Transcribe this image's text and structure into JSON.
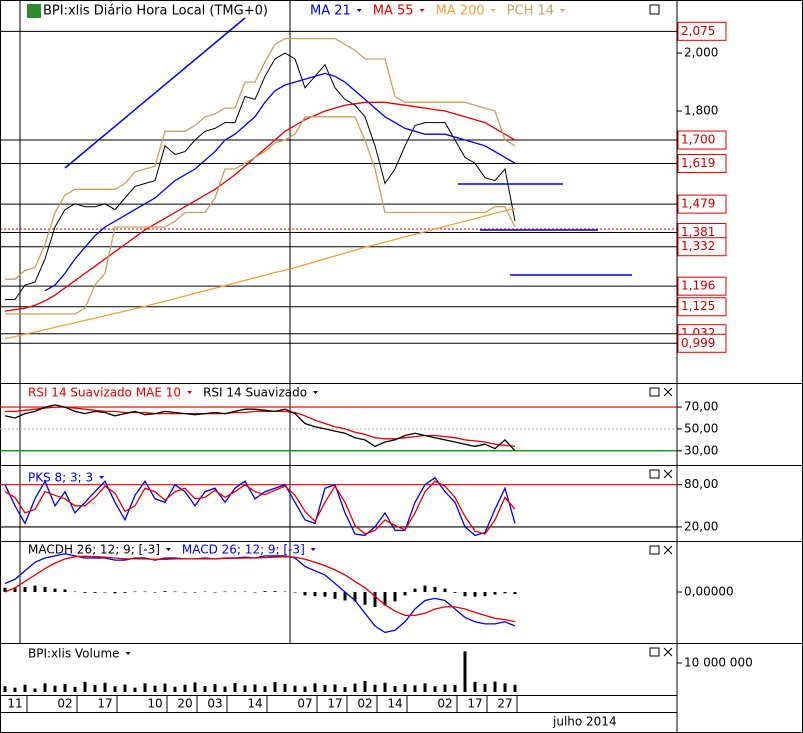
{
  "chart_data": [
    {
      "type": "line",
      "title": "BPI:xlis Diário Hora Local (TMG+0)",
      "period_label": "julho 2014",
      "categories": [
        null,
        "11",
        null,
        null,
        null,
        null,
        "02",
        null,
        null,
        null,
        "17",
        null,
        null,
        null,
        null,
        "10",
        null,
        null,
        "20",
        null,
        null,
        "03",
        null,
        null,
        null,
        "14",
        null,
        null,
        null,
        null,
        "07",
        null,
        null,
        "17",
        null,
        null,
        "02",
        null,
        null,
        "14",
        null,
        null,
        null,
        null,
        "02",
        null,
        null,
        "17",
        null,
        null,
        "27",
        null
      ],
      "ylim": [
        862,
        2183
      ],
      "yticks": [
        {
          "value": 2000,
          "label": "2,000"
        },
        {
          "value": 1800,
          "label": "1,800"
        }
      ],
      "levels": [
        {
          "value": 2075,
          "label": "2,075"
        },
        {
          "value": 1700,
          "label": "1,700"
        },
        {
          "value": 1619,
          "label": "1,619"
        },
        {
          "value": 1479,
          "label": "1,479"
        },
        {
          "value": 1381,
          "label": "1,381"
        },
        {
          "value": 1332,
          "label": "1,332"
        },
        {
          "value": 1196,
          "label": "1,196"
        },
        {
          "value": 1125,
          "label": "1,125"
        },
        {
          "value": 1032,
          "label": "1,032"
        },
        {
          "value": 999,
          "label": "0,999"
        }
      ],
      "series": [
        {
          "color": "#000000",
          "values": [
            1150,
            1150,
            1200,
            1210,
            1290,
            1400,
            1460,
            1480,
            1470,
            1470,
            1480,
            1460,
            1500,
            1540,
            1550,
            1560,
            1680,
            1650,
            1660,
            1700,
            1730,
            1740,
            1760,
            1760,
            1850,
            1840,
            1920,
            1980,
            2000,
            1980,
            1880,
            1920,
            1960,
            1880,
            1840,
            1820,
            1780,
            1680,
            1550,
            1600,
            1680,
            1750,
            1760,
            1760,
            1760,
            1700,
            1640,
            1620,
            1570,
            1560,
            1600,
            1420
          ]
        },
        {
          "name": "MA 21",
          "color": "#0000e0",
          "values": [
            null,
            null,
            null,
            null,
            1180,
            1200,
            1240,
            1290,
            1330,
            1370,
            1400,
            1420,
            1440,
            1460,
            1480,
            1500,
            1530,
            1560,
            1580,
            1600,
            1630,
            1660,
            1700,
            1720,
            1750,
            1780,
            1830,
            1870,
            1890,
            1900,
            1910,
            1920,
            1930,
            1920,
            1900,
            1870,
            1840,
            1810,
            1780,
            1760,
            1740,
            1730,
            1720,
            1720,
            1720,
            1710,
            1700,
            1690,
            1680,
            1660,
            1640,
            1620
          ]
        },
        {
          "name": "MA 55",
          "color": "#e00000",
          "values": [
            1110,
            1115,
            1120,
            1130,
            1145,
            1165,
            1190,
            1215,
            1240,
            1265,
            1290,
            1315,
            1340,
            1365,
            1390,
            1410,
            1430,
            1450,
            1470,
            1490,
            1510,
            1530,
            1555,
            1580,
            1610,
            1640,
            1670,
            1700,
            1730,
            1750,
            1770,
            1785,
            1800,
            1810,
            1820,
            1825,
            1830,
            1830,
            1830,
            1825,
            1820,
            1815,
            1810,
            1805,
            1800,
            1790,
            1780,
            1770,
            1760,
            1740,
            1720,
            1700
          ]
        },
        {
          "name": "MA 200",
          "color": "#f0a040",
          "values": [
            1015,
            1022,
            1030,
            1038,
            1046,
            1054,
            1062,
            1070,
            1078,
            1086,
            1094,
            1102,
            1110,
            1118,
            1126,
            1135,
            1144,
            1153,
            1162,
            1171,
            1180,
            1189,
            1198,
            1207,
            1216,
            1225,
            1234,
            1243,
            1251,
            1260,
            1270,
            1280,
            1290,
            1300,
            1310,
            1320,
            1330,
            1339,
            1348,
            1357,
            1366,
            1375,
            1384,
            1393,
            1402,
            1411,
            1420,
            1429,
            1438,
            1447,
            1456,
            1465
          ]
        },
        {
          "name": "PCH 14",
          "color": "#c8a060",
          "values": [
            1220,
            1220,
            1250,
            1260,
            1340,
            1450,
            1510,
            1530,
            1530,
            1530,
            1530,
            1530,
            1550,
            1590,
            1600,
            1610,
            1730,
            1730,
            1730,
            1750,
            1780,
            1790,
            1810,
            1810,
            1900,
            1900,
            1970,
            2030,
            2050,
            2050,
            2050,
            2050,
            2050,
            2050,
            2030,
            2010,
            1980,
            1980,
            1980,
            1850,
            1830,
            1830,
            1830,
            1830,
            1830,
            1830,
            1830,
            1820,
            1810,
            1800,
            1700,
            1680
          ],
          "lower": [
            1100,
            1100,
            1100,
            1100,
            1100,
            1100,
            1100,
            1100,
            1120,
            1200,
            1240,
            1400,
            1400,
            1400,
            1400,
            1400,
            1400,
            1420,
            1450,
            1450,
            1450,
            1500,
            1600,
            1600,
            1620,
            1640,
            1660,
            1690,
            1700,
            1720,
            1780,
            1780,
            1780,
            1780,
            1780,
            1780,
            1700,
            1600,
            1450,
            1450,
            1450,
            1450,
            1450,
            1450,
            1450,
            1450,
            1450,
            1450,
            1450,
            1470,
            1470,
            1400
          ]
        }
      ]
    },
    {
      "type": "line",
      "ylim": [
        17,
        92
      ],
      "yticks": [
        {
          "value": 70,
          "label": "70,00"
        },
        {
          "value": 50,
          "label": "50,00"
        },
        {
          "value": 30,
          "label": "30,00"
        }
      ],
      "ytick_colors": [
        "#e00000",
        "#bbbbbb",
        "#008000"
      ],
      "series": [
        {
          "name": "RSI 14 Suavizado MAE 10",
          "color": "#e00000",
          "values": [
            66,
            66,
            67,
            68,
            69,
            70,
            70,
            69,
            68,
            67,
            66,
            66,
            65,
            65,
            65,
            64,
            64,
            64,
            64,
            64,
            64,
            64,
            64,
            65,
            65,
            66,
            66,
            66,
            66,
            65,
            62,
            58,
            55,
            52,
            50,
            47,
            45,
            42,
            41,
            41,
            42,
            43,
            44,
            44,
            43,
            42,
            40,
            39,
            38,
            36,
            35,
            34
          ]
        },
        {
          "name": "RSI 14 Suavizado",
          "color": "#000000",
          "values": [
            62,
            60,
            64,
            66,
            70,
            72,
            70,
            66,
            64,
            66,
            65,
            62,
            64,
            66,
            63,
            64,
            66,
            65,
            64,
            63,
            64,
            65,
            64,
            66,
            68,
            68,
            67,
            66,
            68,
            64,
            55,
            52,
            50,
            48,
            46,
            42,
            40,
            34,
            38,
            40,
            44,
            46,
            44,
            42,
            40,
            38,
            36,
            34,
            36,
            32,
            40,
            30
          ]
        }
      ]
    },
    {
      "type": "line",
      "ylim": [
        0,
        108
      ],
      "yticks": [
        {
          "value": 80,
          "label": "80,00"
        },
        {
          "value": 20,
          "label": "20,00"
        }
      ],
      "ytick_colors": [
        "#e00000",
        "#000000"
      ],
      "series": [
        {
          "name": "PKS 8; 3; 3",
          "color": "#0000e0",
          "values": [
            80,
            50,
            25,
            60,
            85,
            50,
            70,
            40,
            55,
            70,
            85,
            55,
            30,
            65,
            85,
            60,
            55,
            80,
            70,
            50,
            70,
            75,
            55,
            75,
            85,
            60,
            70,
            75,
            80,
            55,
            30,
            25,
            75,
            80,
            40,
            10,
            8,
            20,
            40,
            15,
            15,
            55,
            80,
            90,
            70,
            55,
            20,
            8,
            12,
            45,
            75,
            25
          ]
        },
        {
          "color": "#e00000",
          "values": [
            70,
            62,
            40,
            45,
            70,
            65,
            60,
            50,
            50,
            62,
            78,
            68,
            42,
            50,
            75,
            70,
            58,
            70,
            75,
            60,
            62,
            72,
            62,
            70,
            80,
            70,
            66,
            72,
            78,
            65,
            42,
            28,
            55,
            78,
            55,
            22,
            10,
            15,
            30,
            22,
            16,
            40,
            70,
            85,
            78,
            62,
            35,
            14,
            10,
            30,
            62,
            45
          ]
        }
      ]
    },
    {
      "type": "line",
      "ylim": [
        -0.12,
        0.12
      ],
      "yticks": [
        {
          "value": 0,
          "label": "0,00000"
        }
      ],
      "series": [
        {
          "name": "MACDH 26; 12; 9; [-3]",
          "color": "#000000",
          "style": "histogram",
          "values": [
            0.01,
            0.01,
            0.012,
            0.015,
            0.012,
            0.008,
            0.006,
            0.001,
            -0.002,
            -0.002,
            -0.001,
            -0.003,
            -0.002,
            0.001,
            0.001,
            -0.001,
            0.002,
            0.001,
            0,
            0,
            0.001,
            0,
            0.001,
            0.001,
            0.001,
            0,
            0.002,
            0.002,
            0.001,
            -0.001,
            -0.008,
            -0.01,
            -0.011,
            -0.016,
            -0.02,
            -0.022,
            -0.03,
            -0.035,
            -0.032,
            -0.022,
            -0.008,
            0.008,
            0.015,
            0.012,
            0.008,
            -0.002,
            -0.01,
            -0.011,
            -0.01,
            -0.006,
            -0.003,
            -0.005
          ]
        },
        {
          "name": "MACD 26; 12; 9; [-3]",
          "color": "#0000e0",
          "values": [
            0.02,
            0.03,
            0.05,
            0.07,
            0.08,
            0.085,
            0.09,
            0.085,
            0.08,
            0.08,
            0.08,
            0.075,
            0.075,
            0.08,
            0.08,
            0.075,
            0.08,
            0.08,
            0.078,
            0.078,
            0.08,
            0.078,
            0.08,
            0.08,
            0.082,
            0.08,
            0.085,
            0.085,
            0.085,
            0.08,
            0.06,
            0.05,
            0.04,
            0.02,
            0.0,
            -0.02,
            -0.05,
            -0.08,
            -0.095,
            -0.09,
            -0.07,
            -0.04,
            -0.02,
            -0.015,
            -0.02,
            -0.04,
            -0.06,
            -0.07,
            -0.075,
            -0.075,
            -0.07,
            -0.08
          ]
        },
        {
          "color": "#e00000",
          "values": [
            0.0,
            0.01,
            0.025,
            0.04,
            0.055,
            0.068,
            0.078,
            0.083,
            0.084,
            0.083,
            0.082,
            0.08,
            0.078,
            0.078,
            0.078,
            0.077,
            0.077,
            0.078,
            0.078,
            0.078,
            0.078,
            0.078,
            0.079,
            0.079,
            0.08,
            0.08,
            0.081,
            0.082,
            0.083,
            0.082,
            0.077,
            0.07,
            0.062,
            0.052,
            0.04,
            0.025,
            0.01,
            -0.01,
            -0.03,
            -0.045,
            -0.055,
            -0.055,
            -0.05,
            -0.04,
            -0.035,
            -0.035,
            -0.04,
            -0.048,
            -0.055,
            -0.062,
            -0.065,
            -0.07
          ]
        }
      ]
    },
    {
      "type": "bar",
      "ylim": [
        0,
        16200000
      ],
      "yticks": [
        {
          "value": 10000000,
          "label": "10 000 000"
        }
      ],
      "series": [
        {
          "name": "BPI:xlis Volume",
          "color": "#000000",
          "values": [
            2000000,
            1500000,
            2500000,
            1200000,
            3000000,
            2200000,
            2800000,
            1800000,
            3500000,
            2400000,
            3200000,
            2000000,
            2600000,
            1500000,
            3000000,
            2200000,
            2900000,
            1800000,
            2500000,
            3300000,
            2100000,
            2700000,
            1900000,
            3100000,
            2300000,
            2600000,
            2000000,
            3400000,
            2800000,
            2200000,
            1900000,
            3000000,
            2400000,
            2600000,
            1700000,
            2900000,
            3800000,
            2500000,
            3200000,
            2100000,
            2700000,
            2300000,
            3000000,
            2000000,
            2600000,
            2400000,
            14000000,
            3500000,
            2800000,
            3600000,
            3000000,
            2500000
          ]
        }
      ]
    }
  ]
}
